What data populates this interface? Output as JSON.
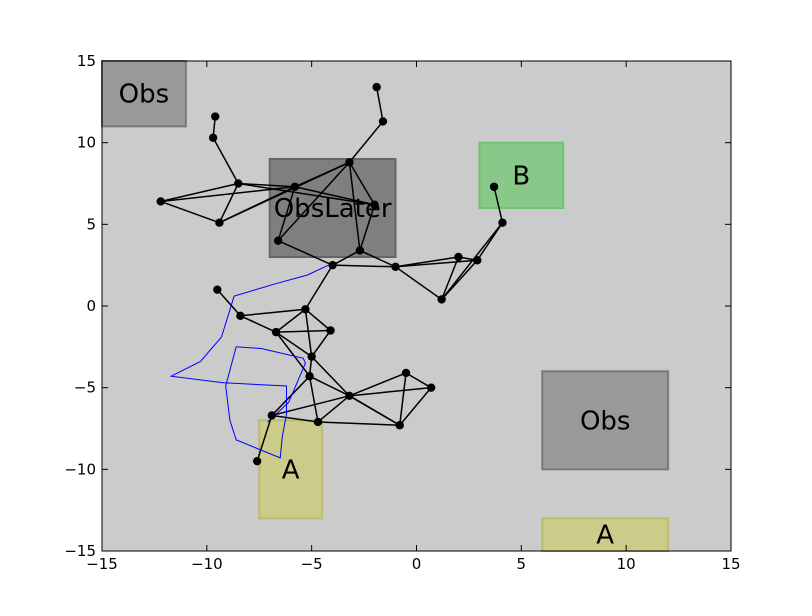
{
  "chart_data": {
    "type": "scatter",
    "title": "",
    "xlabel": "",
    "ylabel": "",
    "xlim": [
      -15,
      15
    ],
    "ylim": [
      -15,
      15
    ],
    "xticks": [
      -15,
      -10,
      -5,
      0,
      5,
      10,
      15
    ],
    "yticks": [
      -15,
      -10,
      -5,
      0,
      5,
      10,
      15
    ],
    "grid": false,
    "colors": {
      "axes_bg": "#cbcbcb",
      "obs": "#999999",
      "obs_later": "#7f7f7f",
      "goal_a": "#cbcb8a",
      "goal_b": "#88c888",
      "node": "#000000",
      "edge": "#000000",
      "path": "#0000ff"
    },
    "regions": [
      {
        "label": "Obs",
        "kind": "obs",
        "x0": -15,
        "x1": -11,
        "y0": 11,
        "y1": 15
      },
      {
        "label": "ObsLater",
        "kind": "obs_later",
        "x0": -7,
        "x1": -1,
        "y0": 3,
        "y1": 9
      },
      {
        "label": "B",
        "kind": "goal_b",
        "x0": 3,
        "x1": 7,
        "y0": 6,
        "y1": 10
      },
      {
        "label": "Obs",
        "kind": "obs",
        "x0": 6,
        "x1": 12,
        "y0": -10,
        "y1": -4
      },
      {
        "label": "A",
        "kind": "goal_a",
        "x0": -7.5,
        "x1": -4.5,
        "y0": -13,
        "y1": -7
      },
      {
        "label": "A",
        "kind": "goal_a",
        "x0": 6,
        "x1": 12,
        "y0": -15,
        "y1": -13
      }
    ],
    "nodes": [
      [
        -1.9,
        13.4
      ],
      [
        -1.6,
        11.3
      ],
      [
        -9.6,
        11.6
      ],
      [
        -9.7,
        10.3
      ],
      [
        -8.5,
        7.5
      ],
      [
        -12.2,
        6.4
      ],
      [
        -9.4,
        5.1
      ],
      [
        -5.8,
        7.3
      ],
      [
        -3.2,
        8.8
      ],
      [
        -2.0,
        6.2
      ],
      [
        -6.6,
        4.0
      ],
      [
        -2.7,
        3.4
      ],
      [
        -4.0,
        2.5
      ],
      [
        -1.0,
        2.4
      ],
      [
        1.2,
        0.4
      ],
      [
        2.0,
        3.0
      ],
      [
        2.9,
        2.8
      ],
      [
        4.1,
        5.1
      ],
      [
        3.7,
        7.3
      ],
      [
        -9.5,
        1.0
      ],
      [
        -8.4,
        -0.6
      ],
      [
        -5.3,
        -0.2
      ],
      [
        -6.7,
        -1.6
      ],
      [
        -4.1,
        -1.5
      ],
      [
        -5.0,
        -3.1
      ],
      [
        -5.1,
        -4.3
      ],
      [
        -3.2,
        -5.5
      ],
      [
        -0.5,
        -4.1
      ],
      [
        0.7,
        -5.0
      ],
      [
        -0.8,
        -7.3
      ],
      [
        -6.9,
        -6.7
      ],
      [
        -4.7,
        -7.1
      ],
      [
        -7.6,
        -9.5
      ]
    ],
    "edges": [
      [
        0,
        1
      ],
      [
        1,
        8
      ],
      [
        2,
        3
      ],
      [
        3,
        4
      ],
      [
        4,
        5
      ],
      [
        4,
        6
      ],
      [
        5,
        6
      ],
      [
        5,
        7
      ],
      [
        4,
        7
      ],
      [
        4,
        9
      ],
      [
        6,
        7
      ],
      [
        6,
        8
      ],
      [
        7,
        8
      ],
      [
        7,
        9
      ],
      [
        8,
        9
      ],
      [
        7,
        10
      ],
      [
        8,
        10
      ],
      [
        8,
        11
      ],
      [
        9,
        11
      ],
      [
        10,
        12
      ],
      [
        11,
        12
      ],
      [
        12,
        13
      ],
      [
        11,
        13
      ],
      [
        13,
        14
      ],
      [
        13,
        15
      ],
      [
        13,
        16
      ],
      [
        14,
        15
      ],
      [
        14,
        16
      ],
      [
        15,
        16
      ],
      [
        14,
        17
      ],
      [
        16,
        17
      ],
      [
        17,
        18
      ],
      [
        12,
        21
      ],
      [
        19,
        20
      ],
      [
        20,
        21
      ],
      [
        20,
        22
      ],
      [
        21,
        22
      ],
      [
        21,
        23
      ],
      [
        22,
        23
      ],
      [
        22,
        24
      ],
      [
        23,
        24
      ],
      [
        21,
        24
      ],
      [
        24,
        25
      ],
      [
        22,
        25
      ],
      [
        25,
        26
      ],
      [
        24,
        26
      ],
      [
        25,
        30
      ],
      [
        25,
        31
      ],
      [
        26,
        27
      ],
      [
        26,
        28
      ],
      [
        26,
        29
      ],
      [
        27,
        28
      ],
      [
        27,
        29
      ],
      [
        28,
        29
      ],
      [
        26,
        31
      ],
      [
        30,
        31
      ],
      [
        30,
        26
      ],
      [
        30,
        32
      ],
      [
        31,
        29
      ],
      [
        29,
        26
      ]
    ],
    "path": [
      [
        -4.2,
        2.5
      ],
      [
        -5.2,
        1.9
      ],
      [
        -6.9,
        1.3
      ],
      [
        -8.7,
        0.6
      ],
      [
        -9.3,
        -1.9
      ],
      [
        -10.3,
        -3.4
      ],
      [
        -11.7,
        -4.3
      ],
      [
        -9.2,
        -4.7
      ],
      [
        -6.2,
        -4.9
      ],
      [
        -6.2,
        -6.6
      ],
      [
        -6.4,
        -8.0
      ],
      [
        -6.5,
        -9.3
      ],
      [
        -8.6,
        -8.2
      ],
      [
        -8.9,
        -7.0
      ],
      [
        -9.1,
        -4.9
      ],
      [
        -8.6,
        -2.5
      ],
      [
        -7.4,
        -2.6
      ],
      [
        -5.4,
        -3.2
      ],
      [
        -5.3,
        -3.5
      ],
      [
        -6.1,
        -5.9
      ],
      [
        -7.1,
        -7.1
      ]
    ]
  }
}
